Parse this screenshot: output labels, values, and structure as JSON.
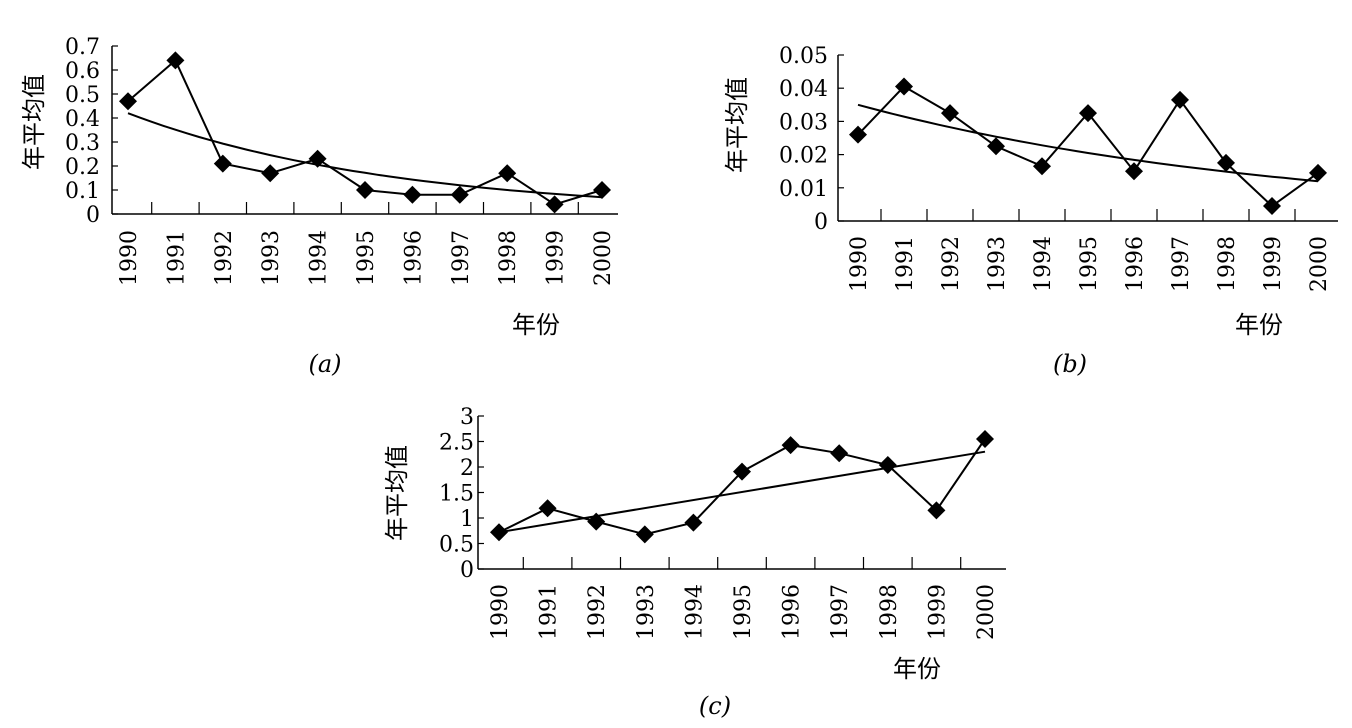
{
  "chart_data": [
    {
      "type": "line",
      "panel_label": "(a)",
      "xlabel": "年份",
      "ylabel": "年平均值",
      "ylim": [
        0,
        0.7
      ],
      "y_ticks": [
        "0",
        "0.1",
        "0.2",
        "0.3",
        "0.4",
        "0.5",
        "0.6",
        "0.7"
      ],
      "categories": [
        "1990",
        "1991",
        "1992",
        "1993",
        "1994",
        "1995",
        "1996",
        "1997",
        "1998",
        "1999",
        "2000"
      ],
      "x": [
        1990,
        1991,
        1992,
        1993,
        1994,
        1995,
        1996,
        1997,
        1998,
        1999,
        2000
      ],
      "values": [
        0.47,
        0.64,
        0.21,
        0.17,
        0.23,
        0.1,
        0.08,
        0.08,
        0.17,
        0.04,
        0.1
      ],
      "trend": {
        "type": "power",
        "from": [
          1990,
          0.42
        ],
        "to": [
          2000,
          0.07
        ]
      },
      "grid": false
    },
    {
      "type": "line",
      "panel_label": "(b)",
      "xlabel": "年份",
      "ylabel": "年平均值",
      "ylim": [
        0,
        0.05
      ],
      "y_ticks": [
        "0",
        "0.01",
        "0.02",
        "0.03",
        "0.04",
        "0.05"
      ],
      "categories": [
        "1990",
        "1991",
        "1992",
        "1993",
        "1994",
        "1995",
        "1996",
        "1997",
        "1998",
        "1999",
        "2000"
      ],
      "x": [
        1990,
        1991,
        1992,
        1993,
        1994,
        1995,
        1996,
        1997,
        1998,
        1999,
        2000
      ],
      "values": [
        0.026,
        0.0405,
        0.0325,
        0.0225,
        0.0165,
        0.0325,
        0.015,
        0.0365,
        0.0175,
        0.0045,
        0.0145
      ],
      "trend": {
        "type": "power",
        "from": [
          1990,
          0.035
        ],
        "to": [
          2000,
          0.012
        ]
      },
      "grid": false
    },
    {
      "type": "line",
      "panel_label": "(c)",
      "xlabel": "年份",
      "ylabel": "年平均值",
      "ylim": [
        0,
        3
      ],
      "y_ticks": [
        "0",
        "0.5",
        "1",
        "1.5",
        "2",
        "2.5",
        "3"
      ],
      "categories": [
        "1990",
        "1991",
        "1992",
        "1993",
        "1994",
        "1995",
        "1996",
        "1997",
        "1998",
        "1999",
        "2000"
      ],
      "x": [
        1990,
        1991,
        1992,
        1993,
        1994,
        1995,
        1996,
        1997,
        1998,
        1999,
        2000
      ],
      "values": [
        0.72,
        1.19,
        0.93,
        0.68,
        0.91,
        1.91,
        2.43,
        2.27,
        2.04,
        1.15,
        2.55
      ],
      "trend": {
        "type": "linear",
        "from": [
          1990,
          0.72
        ],
        "to": [
          2000,
          2.3
        ]
      },
      "grid": false
    }
  ]
}
